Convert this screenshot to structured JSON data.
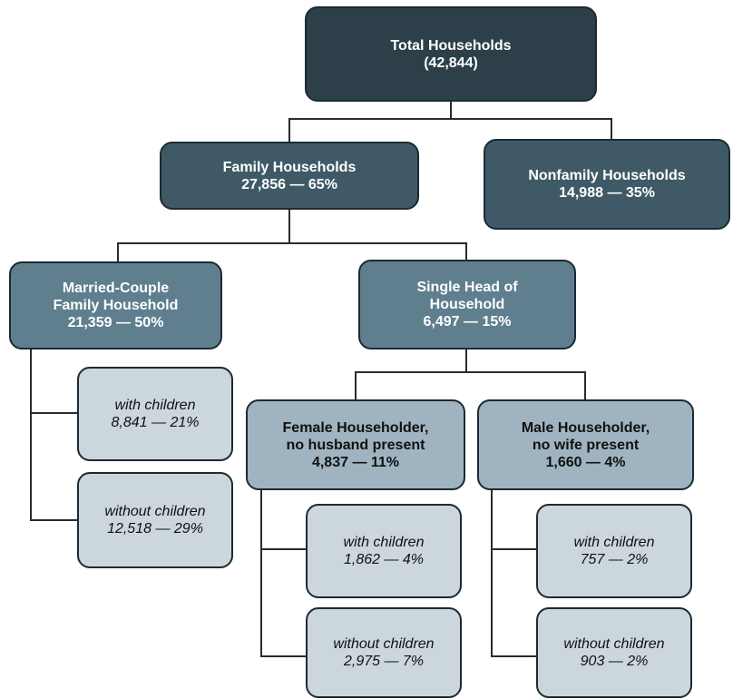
{
  "nodes": {
    "total": {
      "lines": [
        "Total Households",
        "(42,844)"
      ]
    },
    "family": {
      "lines": [
        "Family Households",
        "27,856 — 65%"
      ]
    },
    "nonfamily": {
      "lines": [
        "Nonfamily Households",
        "14,988 — 35%"
      ]
    },
    "married": {
      "lines": [
        "Married-Couple",
        "Family Household",
        "21,359 — 50%"
      ]
    },
    "single_head": {
      "lines": [
        "Single Head of",
        "Household",
        "6,497 — 15%"
      ]
    },
    "married_with": {
      "lines": [
        "with children",
        "8,841 — 21%"
      ]
    },
    "married_without": {
      "lines": [
        "without children",
        "12,518 — 29%"
      ]
    },
    "female": {
      "lines": [
        "Female Householder,",
        "no husband present",
        "4,837 — 11%"
      ]
    },
    "male": {
      "lines": [
        "Male Householder,",
        "no wife present",
        "1,660 — 4%"
      ]
    },
    "female_with": {
      "lines": [
        "with children",
        "1,862 — 4%"
      ]
    },
    "female_without": {
      "lines": [
        "without children",
        "2,975 — 7%"
      ]
    },
    "male_with": {
      "lines": [
        "with children",
        "757 — 2%"
      ]
    },
    "male_without": {
      "lines": [
        "without children",
        "903 — 2%"
      ]
    }
  },
  "colors": {
    "level0": "#2d4049",
    "level1": "#3f5a66",
    "level2": "#5f7f8f",
    "level3": "#9fb4c0",
    "level4": "#ccd6dd",
    "border": "#1c2a33"
  }
}
